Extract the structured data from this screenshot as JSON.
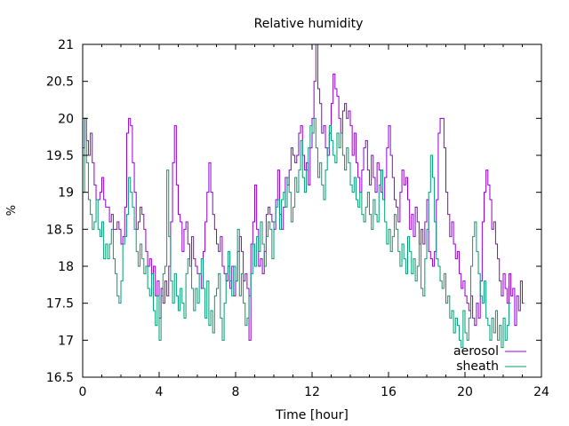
{
  "chart_data": {
    "type": "line",
    "title": "Relative humidity",
    "xlabel": "Time [hour]",
    "ylabel": "%",
    "xlim": [
      0,
      24
    ],
    "ylim": [
      16.5,
      21
    ],
    "xticks": [
      0,
      4,
      8,
      12,
      16,
      20,
      24
    ],
    "xtick_labels": [
      "0",
      "4",
      "8",
      "12",
      "16",
      "20",
      "24"
    ],
    "yticks": [
      16.5,
      17,
      17.5,
      18,
      18.5,
      19,
      19.5,
      20,
      20.5,
      21
    ],
    "ytick_labels": [
      "16.5",
      "17",
      "17.5",
      "18",
      "18.5",
      "19",
      "19.5",
      "20",
      "20.5",
      "21"
    ],
    "x_minor_step": 1,
    "grid": false,
    "legend_position": "bottom-right",
    "x_step": 0.1,
    "series": [
      {
        "name": "aerosol",
        "color": "#9400d3",
        "values": [
          19.6,
          20.0,
          19.7,
          19.5,
          19.8,
          19.4,
          19.1,
          18.9,
          18.9,
          19.0,
          19.2,
          18.9,
          18.8,
          18.8,
          18.6,
          18.7,
          18.5,
          18.5,
          18.6,
          18.5,
          18.3,
          18.4,
          18.8,
          19.8,
          20.0,
          19.9,
          19.4,
          19.0,
          18.5,
          18.6,
          18.8,
          18.7,
          18.5,
          18.2,
          18.0,
          18.1,
          17.9,
          18.0,
          17.6,
          17.8,
          17.3,
          17.7,
          17.5,
          17.8,
          17.6,
          18.0,
          18.6,
          19.4,
          19.9,
          19.1,
          18.7,
          18.6,
          18.2,
          18.5,
          18.6,
          18.3,
          18.0,
          18.4,
          18.1,
          18.0,
          17.9,
          17.9,
          17.7,
          18.2,
          18.6,
          19.0,
          19.4,
          19.0,
          18.7,
          18.5,
          18.3,
          18.2,
          18.4,
          18.0,
          17.9,
          17.8,
          18.0,
          17.7,
          18.0,
          17.6,
          17.8,
          18.2,
          18.4,
          18.2,
          17.8,
          17.9,
          17.7,
          17.0,
          18.3,
          18.6,
          19.1,
          18.5,
          18.0,
          18.1,
          17.9,
          18.2,
          18.7,
          18.8,
          18.7,
          18.6,
          18.5,
          18.9,
          19.3,
          18.7,
          18.5,
          18.8,
          19.2,
          19.1,
          19.3,
          19.6,
          19.5,
          19.4,
          19.5,
          19.8,
          19.9,
          19.5,
          19.3,
          19.4,
          19.1,
          19.6,
          20.0,
          20.5,
          21.0,
          20.4,
          20.2,
          19.8,
          19.9,
          19.6,
          19.5,
          19.8,
          20.2,
          20.6,
          20.4,
          20.3,
          20.0,
          19.8,
          20.1,
          20.2,
          20.0,
          20.1,
          19.9,
          19.5,
          19.8,
          19.4,
          19.2,
          19.0,
          19.3,
          19.6,
          19.7,
          19.3,
          19.1,
          19.5,
          19.2,
          19.0,
          19.4,
          19.3,
          19.0,
          18.9,
          19.2,
          19.6,
          19.9,
          19.5,
          19.2,
          18.9,
          18.8,
          18.6,
          19.0,
          19.3,
          19.1,
          19.2,
          18.9,
          18.5,
          18.7,
          18.4,
          18.8,
          18.6,
          18.3,
          18.5,
          18.3,
          18.6,
          18.9,
          18.2,
          18.1,
          18.0,
          18.2,
          18.9,
          19.8,
          20.0,
          20.0,
          19.6,
          19.0,
          18.7,
          18.4,
          18.6,
          18.3,
          18.1,
          18.2,
          17.9,
          17.7,
          17.8,
          17.6,
          17.5,
          17.4,
          17.6,
          17.3,
          17.2,
          17.5,
          17.3,
          17.8,
          18.6,
          19.0,
          19.3,
          19.1,
          18.9,
          18.5,
          18.6,
          18.3,
          18.1,
          17.8,
          17.6,
          17.9,
          17.7,
          17.5,
          17.9,
          17.6,
          17.7,
          17.2,
          17.6,
          17.4,
          17.8,
          17.5
        ]
      },
      {
        "name": "sheath",
        "color": "#009e73",
        "values": [
          19.0,
          20.0,
          19.4,
          18.9,
          18.7,
          18.5,
          18.6,
          18.9,
          18.5,
          18.4,
          18.6,
          18.1,
          18.3,
          18.1,
          18.3,
          18.5,
          18.1,
          17.9,
          17.6,
          17.5,
          17.8,
          18.3,
          18.4,
          18.7,
          19.2,
          19.0,
          18.8,
          18.5,
          18.2,
          18.0,
          18.3,
          18.1,
          17.9,
          18.0,
          17.7,
          17.6,
          17.9,
          17.4,
          17.2,
          17.6,
          17.0,
          17.6,
          17.9,
          18.0,
          19.3,
          18.4,
          17.8,
          17.5,
          17.9,
          17.6,
          17.4,
          17.7,
          17.5,
          17.3,
          17.9,
          18.1,
          18.0,
          17.7,
          17.4,
          17.7,
          17.5,
          17.9,
          18.1,
          17.7,
          17.3,
          17.8,
          17.2,
          17.4,
          17.1,
          17.6,
          17.7,
          17.9,
          17.3,
          17.0,
          17.5,
          17.9,
          18.2,
          17.8,
          17.6,
          18.0,
          17.8,
          18.5,
          17.6,
          17.9,
          17.5,
          17.2,
          17.3,
          17.6,
          17.9,
          18.3,
          18.0,
          18.4,
          18.2,
          18.6,
          18.3,
          18.0,
          18.4,
          18.6,
          18.5,
          18.1,
          18.6,
          18.8,
          18.9,
          18.5,
          18.9,
          19.0,
          18.8,
          19.2,
          19.0,
          18.6,
          18.8,
          19.2,
          19.0,
          19.3,
          19.7,
          19.2,
          19.0,
          19.3,
          19.6,
          19.9,
          19.8,
          20.0,
          19.6,
          19.2,
          19.4,
          19.1,
          18.9,
          19.3,
          19.6,
          19.9,
          19.7,
          19.5,
          19.4,
          19.8,
          19.6,
          19.8,
          19.5,
          19.3,
          19.6,
          19.4,
          19.1,
          19.0,
          19.2,
          18.9,
          18.8,
          19.0,
          18.7,
          18.6,
          18.8,
          19.0,
          18.7,
          18.5,
          18.9,
          18.7,
          18.6,
          19.1,
          19.3,
          18.9,
          18.6,
          18.3,
          18.5,
          18.2,
          18.4,
          18.7,
          18.5,
          18.2,
          18.0,
          18.3,
          18.1,
          17.9,
          18.4,
          18.2,
          17.9,
          18.1,
          17.8,
          18.0,
          18.3,
          17.7,
          17.6,
          18.1,
          18.5,
          19.0,
          19.5,
          19.2,
          18.6,
          18.1,
          18.0,
          17.8,
          17.7,
          17.9,
          17.5,
          17.6,
          17.3,
          17.4,
          17.1,
          17.3,
          17.2,
          17.0,
          16.9,
          17.4,
          17.1,
          17.0,
          17.3,
          18.0,
          18.4,
          18.6,
          18.2,
          17.9,
          17.6,
          17.5,
          17.8,
          17.3,
          17.2,
          17.0,
          17.3,
          17.1,
          17.4,
          17.0,
          17.2,
          16.9,
          17.3,
          17.0,
          17.2,
          17.5
        ]
      }
    ]
  }
}
